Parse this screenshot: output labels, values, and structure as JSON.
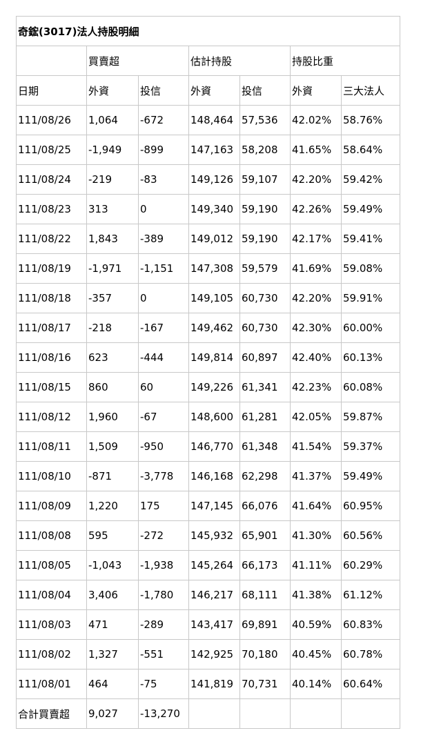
{
  "title": "奇鋐(3017)法人持股明細",
  "group_headers": {
    "blank": "",
    "buy_sell": "買賣超",
    "est_holding": "估計持股",
    "holding_ratio": "持股比重"
  },
  "col_headers": [
    "日期",
    "外資",
    "投信",
    "外資",
    "投信",
    "外資",
    "三大法人"
  ],
  "rows": [
    [
      "111/08/26",
      "1,064",
      "-672",
      "148,464",
      "57,536",
      "42.02%",
      "58.76%"
    ],
    [
      "111/08/25",
      "-1,949",
      "-899",
      "147,163",
      "58,208",
      "41.65%",
      "58.64%"
    ],
    [
      "111/08/24",
      "-219",
      "-83",
      "149,126",
      "59,107",
      "42.20%",
      "59.42%"
    ],
    [
      "111/08/23",
      "313",
      "0",
      "149,340",
      "59,190",
      "42.26%",
      "59.49%"
    ],
    [
      "111/08/22",
      "1,843",
      "-389",
      "149,012",
      "59,190",
      "42.17%",
      "59.41%"
    ],
    [
      "111/08/19",
      "-1,971",
      "-1,151",
      "147,308",
      "59,579",
      "41.69%",
      "59.08%"
    ],
    [
      "111/08/18",
      "-357",
      "0",
      "149,105",
      "60,730",
      "42.20%",
      "59.91%"
    ],
    [
      "111/08/17",
      "-218",
      "-167",
      "149,462",
      "60,730",
      "42.30%",
      "60.00%"
    ],
    [
      "111/08/16",
      "623",
      "-444",
      "149,814",
      "60,897",
      "42.40%",
      "60.13%"
    ],
    [
      "111/08/15",
      "860",
      "60",
      "149,226",
      "61,341",
      "42.23%",
      "60.08%"
    ],
    [
      "111/08/12",
      "1,960",
      "-67",
      "148,600",
      "61,281",
      "42.05%",
      "59.87%"
    ],
    [
      "111/08/11",
      "1,509",
      "-950",
      "146,770",
      "61,348",
      "41.54%",
      "59.37%"
    ],
    [
      "111/08/10",
      "-871",
      "-3,778",
      "146,168",
      "62,298",
      "41.37%",
      "59.49%"
    ],
    [
      "111/08/09",
      "1,220",
      "175",
      "147,145",
      "66,076",
      "41.64%",
      "60.95%"
    ],
    [
      "111/08/08",
      "595",
      "-272",
      "145,932",
      "65,901",
      "41.30%",
      "60.56%"
    ],
    [
      "111/08/05",
      "-1,043",
      "-1,938",
      "145,264",
      "66,173",
      "41.11%",
      "60.29%"
    ],
    [
      "111/08/04",
      "3,406",
      "-1,780",
      "146,217",
      "68,111",
      "41.38%",
      "61.12%"
    ],
    [
      "111/08/03",
      "471",
      "-289",
      "143,417",
      "69,891",
      "40.59%",
      "60.83%"
    ],
    [
      "111/08/02",
      "1,327",
      "-551",
      "142,925",
      "70,180",
      "40.45%",
      "60.78%"
    ],
    [
      "111/08/01",
      "464",
      "-75",
      "141,819",
      "70,731",
      "40.14%",
      "60.64%"
    ]
  ],
  "total_row": [
    "合計買賣超",
    "9,027",
    "-13,270",
    "",
    "",
    "",
    ""
  ]
}
